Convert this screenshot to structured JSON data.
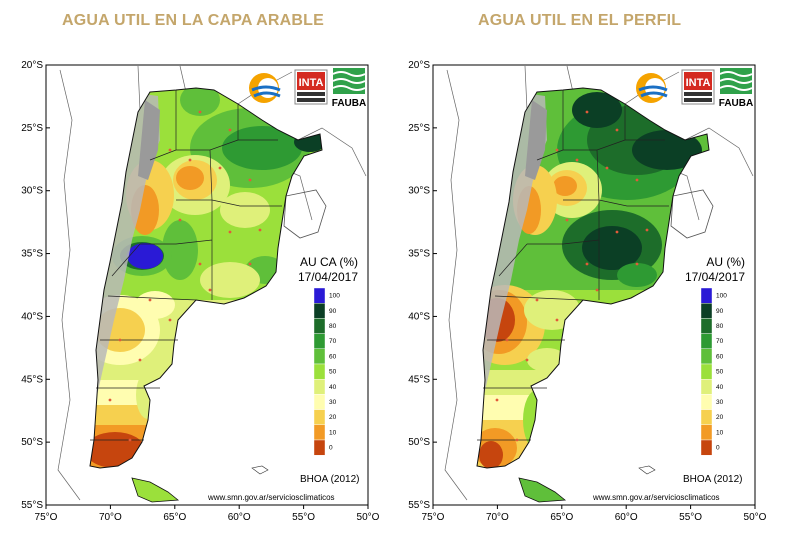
{
  "panels": [
    {
      "title": "AGUA UTIL EN LA CAPA ARABLE",
      "legend_title_line1": "AU CA (%)",
      "legend_date": "17/04/2017",
      "source": "BHOA (2012)",
      "url": "www.smn.gov.ar/serviciosclimaticos"
    },
    {
      "title": "AGUA UTIL EN EL PERFIL",
      "legend_title_line1": "AU (%)",
      "legend_date": "17/04/2017",
      "source": "BHOA (2012)",
      "url": "www.smn.gov.ar/serviciosclimaticos"
    }
  ],
  "legend_levels": [
    "100",
    "90",
    "80",
    "70",
    "60",
    "50",
    "40",
    "30",
    "20",
    "10",
    "0"
  ],
  "legend_colors": [
    "#2a1ad6",
    "#0b3f25",
    "#1d6d2a",
    "#2e9a33",
    "#5fbf3a",
    "#9be03b",
    "#dff07a",
    "#fffdb0",
    "#f6d04f",
    "#f29a25",
    "#c6450e"
  ],
  "lat_ticks": [
    "20°S",
    "25°S",
    "30°S",
    "35°S",
    "40°S",
    "45°S",
    "50°S",
    "55°S"
  ],
  "lon_ticks": [
    "75°O",
    "70°O",
    "65°O",
    "60°O",
    "55°O",
    "50°O"
  ],
  "logos": {
    "inta_text": "INTA",
    "fauba_text": "FAUBA"
  }
}
